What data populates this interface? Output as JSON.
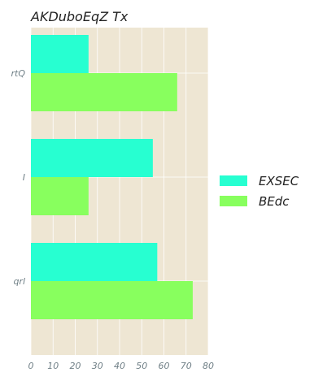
{
  "chart_data": {
    "type": "bar",
    "orientation": "horizontal",
    "title": "AKDuboEqZ Tx",
    "xlabel": "",
    "ylabel": "",
    "categories": [
      "rtQ",
      "I",
      "qrl"
    ],
    "series": [
      {
        "name": "EXSEC",
        "color": "#27ffd1",
        "values": [
          26,
          55,
          57
        ]
      },
      {
        "name": "BEdc",
        "color": "#88ff5e",
        "values": [
          66,
          26,
          73
        ]
      }
    ],
    "xlim": [
      0,
      80
    ],
    "xticks": [
      0,
      10,
      20,
      30,
      40,
      50,
      60,
      70,
      80
    ],
    "grid": true,
    "legend_position": "right",
    "background": "#eee6d3",
    "grid_color": "#ffffff"
  }
}
